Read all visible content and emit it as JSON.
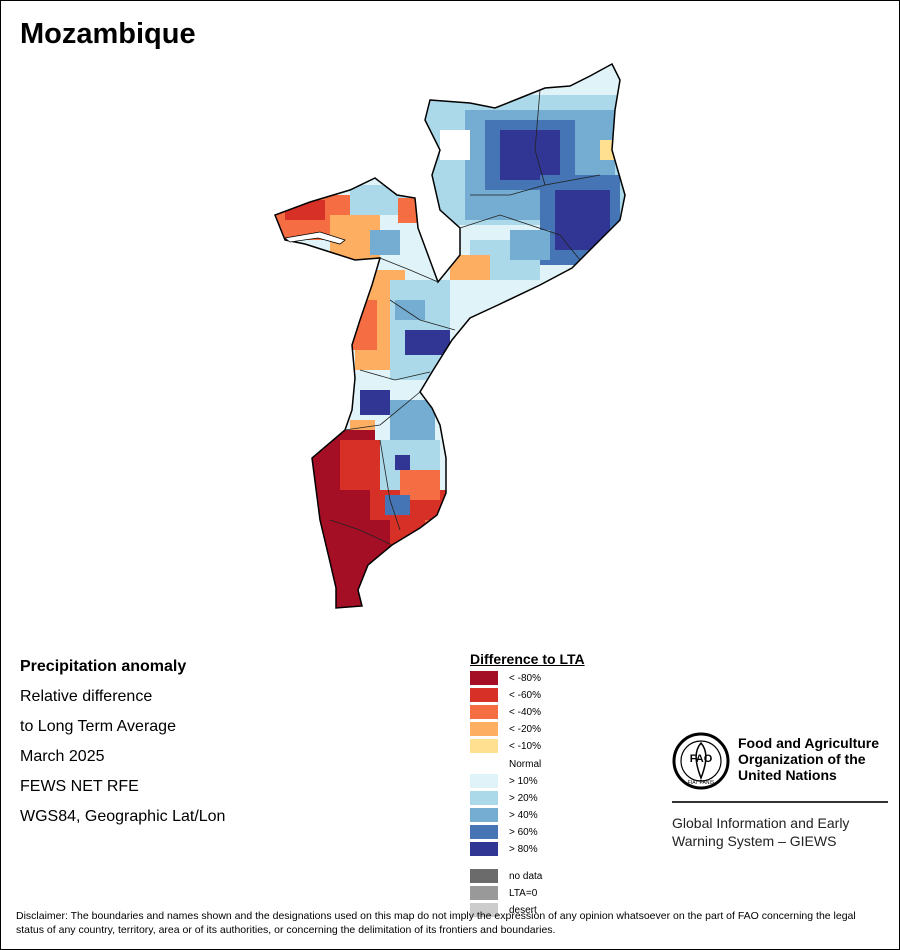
{
  "title": "Mozambique",
  "info": {
    "line1": "Precipitation anomaly",
    "line2": "Relative difference",
    "line3": "to Long Term Average",
    "line4": "March 2025",
    "line5": "FEWS NET RFE",
    "line6": "WGS84, Geographic Lat/Lon"
  },
  "legend": {
    "title": "Difference to LTA",
    "items": [
      {
        "label": "< -80%",
        "color": "#a50f26"
      },
      {
        "label": "< -60%",
        "color": "#d73027"
      },
      {
        "label": "< -40%",
        "color": "#f46d43"
      },
      {
        "label": "< -20%",
        "color": "#fdae61"
      },
      {
        "label": "< -10%",
        "color": "#fee090"
      },
      {
        "label": "Normal",
        "color": "#ffffff"
      },
      {
        "label": "> 10%",
        "color": "#e0f3f8"
      },
      {
        "label": "> 20%",
        "color": "#abd9e9"
      },
      {
        "label": "> 40%",
        "color": "#74add1"
      },
      {
        "label": "> 60%",
        "color": "#4575b4"
      },
      {
        "label": "> 80%",
        "color": "#313695"
      },
      {
        "label": "no data",
        "color": "#6b6b6b"
      },
      {
        "label": "LTA=0",
        "color": "#999999"
      },
      {
        "label": "desert",
        "color": "#cccccc"
      }
    ]
  },
  "fao": {
    "logo_text": "FAO",
    "logo_motto": "FIAT PANIS",
    "name_line1": "Food and Agriculture",
    "name_line2": "Organization of the",
    "name_line3": "United Nations",
    "giews_line1": "Global Information and Early",
    "giews_line2": "Warning System – GIEWS"
  },
  "disclaimer": "Disclaimer: The boundaries and names shown and the designations used on this map do not imply the expression of any opinion whatsoever on the part of FAO concerning the legal status of any country, territory, area or of its authorities, or concerning the delimitation of its frontiers and boundaries."
}
